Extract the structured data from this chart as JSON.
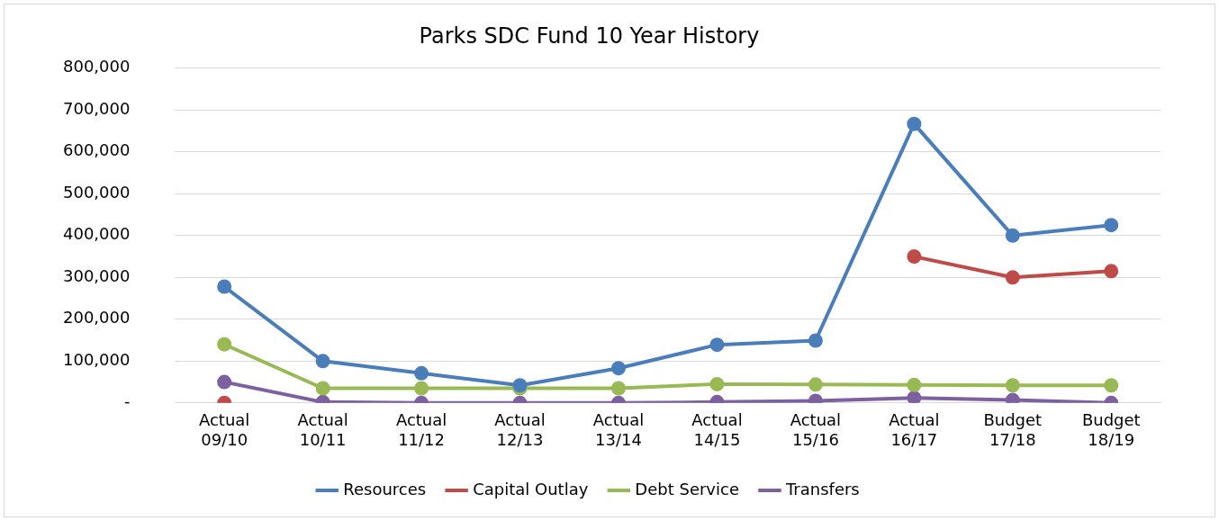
{
  "chart_data": {
    "type": "line",
    "title": "Parks SDC Fund 10 Year History",
    "categories": [
      "Actual 09/10",
      "Actual 10/11",
      "Actual 11/12",
      "Actual 12/13",
      "Actual 13/14",
      "Actual 14/15",
      "Actual 15/16",
      "Actual 16/17",
      "Budget 17/18",
      "Budget 18/19"
    ],
    "series": [
      {
        "name": "Resources",
        "color": "#4a7ebb",
        "values": [
          278000,
          100000,
          71000,
          42000,
          83000,
          139000,
          149000,
          667000,
          400000,
          425000
        ]
      },
      {
        "name": "Capital Outlay",
        "color": "#be4b48",
        "values": [
          0,
          null,
          null,
          null,
          null,
          null,
          null,
          350000,
          300000,
          315000
        ]
      },
      {
        "name": "Debt Service",
        "color": "#98b954",
        "values": [
          140000,
          35000,
          35000,
          35000,
          35000,
          45000,
          44000,
          43000,
          42000,
          42000
        ]
      },
      {
        "name": "Transfers",
        "color": "#7d60a0",
        "values": [
          50000,
          2000,
          0,
          0,
          0,
          2000,
          5000,
          12000,
          7000,
          0
        ]
      }
    ],
    "ylim": [
      0,
      800000
    ],
    "yticks": [
      {
        "value": 0,
        "label": "-"
      },
      {
        "value": 100000,
        "label": "100,000"
      },
      {
        "value": 200000,
        "label": "200,000"
      },
      {
        "value": 300000,
        "label": "300,000"
      },
      {
        "value": 400000,
        "label": "400,000"
      },
      {
        "value": 500000,
        "label": "500,000"
      },
      {
        "value": 600000,
        "label": "600,000"
      },
      {
        "value": 700000,
        "label": "700,000"
      },
      {
        "value": 800000,
        "label": "800,000"
      }
    ],
    "grid": "y",
    "legend": "bottom",
    "marker": "circle",
    "line_style": "solid"
  }
}
